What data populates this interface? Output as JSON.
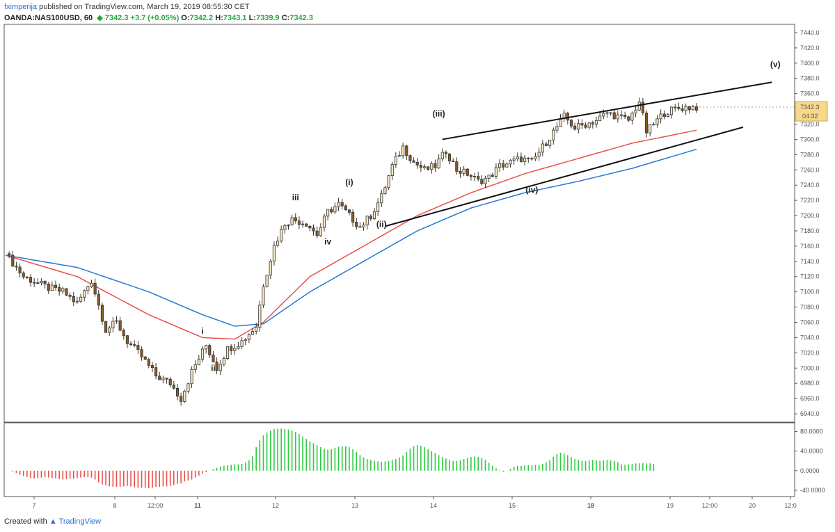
{
  "header": {
    "author": "fximperija",
    "published": "published on TradingView.com, March 19, 2019 08:55:30 CET",
    "symbol": "OANDA:NAS100USD, 60",
    "last": "7342.3",
    "change": "+3.7 (+0.05%)",
    "open_label": "O:",
    "open": "7342.2",
    "high_label": "H:",
    "high": "7343.1",
    "low_label": "L:",
    "low": "7339.9",
    "close_label": "C:",
    "close": "7342.3"
  },
  "footer": {
    "created": "Created with",
    "brand": "TradingView"
  },
  "colors": {
    "up_candle": "#f5e6c0",
    "down_candle": "#8a5a22",
    "ema_fast": "#e8504a",
    "ema_slow": "#2a78d0",
    "hist_up": "#2ecc40",
    "hist_down": "#e8504a",
    "trendline": "#111111",
    "price_tag_bg": "#f7d98b"
  },
  "chart_data": {
    "type": "candlestick",
    "instrument": "OANDA:NAS100USD, 60",
    "price_axis": {
      "ylim": [
        6930,
        7450
      ],
      "ticks": [
        7440.0,
        7420.0,
        7400.0,
        7380.0,
        7360.0,
        7340.0,
        7320.0,
        7300.0,
        7280.0,
        7260.0,
        7240.0,
        7220.0,
        7200.0,
        7180.0,
        7160.0,
        7140.0,
        7120.0,
        7100.0,
        7080.0,
        7060.0,
        7040.0,
        7020.0,
        7000.0,
        6980.0,
        6960.0,
        6940.0
      ]
    },
    "time_axis": {
      "labels": [
        "7",
        "8",
        "12:00",
        "11",
        "12",
        "13",
        "14",
        "15",
        "18",
        "19",
        "12:00",
        "20",
        "12:0"
      ]
    },
    "price_tag": {
      "price": "7342.3",
      "countdown": "04:32"
    },
    "close_path": [
      [
        0,
        7150
      ],
      [
        5,
        7120
      ],
      [
        12,
        7105
      ],
      [
        16,
        7100
      ],
      [
        20,
        7085
      ],
      [
        24,
        7115
      ],
      [
        28,
        7050
      ],
      [
        31,
        7060
      ],
      [
        34,
        7035
      ],
      [
        38,
        7015
      ],
      [
        42,
        6990
      ],
      [
        46,
        6980
      ],
      [
        49,
        6960
      ],
      [
        52,
        6995
      ],
      [
        56,
        7030
      ],
      [
        59,
        7000
      ],
      [
        62,
        7025
      ],
      [
        66,
        7035
      ],
      [
        70,
        7055
      ],
      [
        72,
        7110
      ],
      [
        75,
        7160
      ],
      [
        78,
        7190
      ],
      [
        80,
        7195
      ],
      [
        84,
        7190
      ],
      [
        87,
        7175
      ],
      [
        90,
        7205
      ],
      [
        93,
        7215
      ],
      [
        96,
        7200
      ],
      [
        99,
        7185
      ],
      [
        102,
        7200
      ],
      [
        105,
        7225
      ],
      [
        108,
        7265
      ],
      [
        111,
        7290
      ],
      [
        114,
        7270
      ],
      [
        117,
        7260
      ],
      [
        120,
        7265
      ],
      [
        123,
        7285
      ],
      [
        126,
        7260
      ],
      [
        129,
        7255
      ],
      [
        132,
        7245
      ],
      [
        135,
        7250
      ],
      [
        138,
        7265
      ],
      [
        141,
        7270
      ],
      [
        144,
        7275
      ],
      [
        147,
        7270
      ],
      [
        150,
        7290
      ],
      [
        153,
        7310
      ],
      [
        156,
        7330
      ],
      [
        159,
        7315
      ],
      [
        162,
        7320
      ],
      [
        165,
        7325
      ],
      [
        168,
        7335
      ],
      [
        171,
        7330
      ],
      [
        174,
        7325
      ],
      [
        177,
        7350
      ],
      [
        179,
        7310
      ],
      [
        181,
        7320
      ],
      [
        184,
        7335
      ],
      [
        187,
        7340
      ],
      [
        190,
        7342
      ],
      [
        193,
        7342.3
      ]
    ],
    "series": [
      {
        "name": "",
        "color": "#e8504a",
        "points": [
          [
            0,
            7148
          ],
          [
            20,
            7120
          ],
          [
            40,
            7070
          ],
          [
            55,
            7040
          ],
          [
            64,
            7038
          ],
          [
            72,
            7060
          ],
          [
            85,
            7120
          ],
          [
            100,
            7160
          ],
          [
            115,
            7200
          ],
          [
            130,
            7230
          ],
          [
            145,
            7255
          ],
          [
            160,
            7275
          ],
          [
            175,
            7295
          ],
          [
            193,
            7312
          ]
        ]
      },
      {
        "name": "",
        "color": "#2a78d0",
        "points": [
          [
            0,
            7148
          ],
          [
            20,
            7132
          ],
          [
            40,
            7100
          ],
          [
            55,
            7070
          ],
          [
            64,
            7055
          ],
          [
            72,
            7058
          ],
          [
            85,
            7100
          ],
          [
            100,
            7140
          ],
          [
            115,
            7180
          ],
          [
            130,
            7210
          ],
          [
            145,
            7230
          ],
          [
            160,
            7245
          ],
          [
            175,
            7262
          ],
          [
            193,
            7287
          ]
        ]
      }
    ],
    "annotations": [
      {
        "text": "i",
        "x": 55,
        "price": 7045
      },
      {
        "text": "ii",
        "x": 58,
        "price": 6996
      },
      {
        "text": "iii",
        "x": 81,
        "price": 7220
      },
      {
        "text": "iv",
        "x": 90,
        "price": 7162
      },
      {
        "text": "(i)",
        "x": 96,
        "price": 7240
      },
      {
        "text": "(ii)",
        "x": 105,
        "price": 7185
      },
      {
        "text": "(iii)",
        "x": 121,
        "price": 7330
      },
      {
        "text": "(iv)",
        "x": 147,
        "price": 7230
      },
      {
        "text": "(v)",
        "x": 215,
        "price": 7395
      }
    ],
    "trendlines": [
      {
        "from": [
          122,
          7300
        ],
        "to": [
          214,
          7375
        ]
      },
      {
        "from": [
          106,
          7186
        ],
        "to": [
          206,
          7316
        ]
      }
    ],
    "oscillator": {
      "ylim": [
        -50,
        95
      ],
      "ticks": [
        80.0,
        40.0,
        0.0,
        -40.0
      ],
      "values": [
        0,
        -2,
        -5,
        -8,
        -11,
        -13,
        -15,
        -16,
        -15,
        -14,
        -13,
        -14,
        -15,
        -16,
        -17,
        -18,
        -17,
        -16,
        -16,
        -15,
        -14,
        -13,
        -13,
        -14,
        -18,
        -24,
        -28,
        -30,
        -32,
        -33,
        -33,
        -33,
        -32,
        -31,
        -32,
        -34,
        -35,
        -35,
        -35,
        -36,
        -35,
        -33,
        -33,
        -32,
        -32,
        -31,
        -29,
        -27,
        -26,
        -22,
        -20,
        -18,
        -14,
        -10,
        -6,
        -3,
        0,
        3,
        6,
        8,
        10,
        11,
        12,
        13,
        13,
        14,
        17,
        21,
        30,
        48,
        62,
        72,
        78,
        82,
        85,
        86,
        86,
        85,
        84,
        82,
        79,
        75,
        70,
        65,
        60,
        56,
        52,
        48,
        45,
        43,
        44,
        47,
        49,
        50,
        50,
        48,
        44,
        38,
        32,
        27,
        24,
        22,
        20,
        19,
        18,
        19,
        20,
        22,
        24,
        27,
        31,
        38,
        45,
        50,
        52,
        51,
        48,
        44,
        40,
        36,
        32,
        28,
        25,
        22,
        20,
        20,
        21,
        24,
        26,
        28,
        29,
        28,
        26,
        22,
        16,
        10,
        5,
        1,
        -2,
        0,
        4,
        8,
        10,
        10,
        11,
        11,
        11,
        12,
        12,
        14,
        17,
        22,
        28,
        34,
        37,
        35,
        32,
        28,
        24,
        22,
        20,
        20,
        21,
        22,
        21,
        20,
        21,
        22,
        21,
        20,
        17,
        13,
        12,
        13,
        14,
        15,
        15,
        15,
        15,
        15,
        14
      ]
    }
  }
}
